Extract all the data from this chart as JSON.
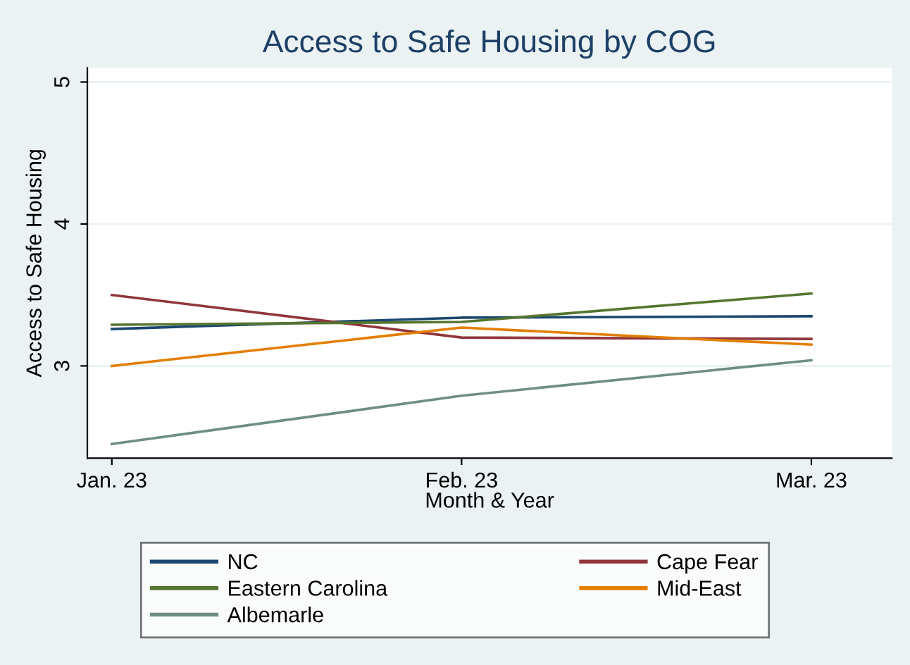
{
  "chart_data": {
    "type": "line",
    "title": "Access to Safe Housing by COG",
    "xlabel": "Month & Year",
    "ylabel": "Access to Safe Housing",
    "categories": [
      "Jan. 23",
      "Feb. 23",
      "Mar. 23"
    ],
    "series": [
      {
        "name": "NC",
        "color": "#1a476f",
        "values": [
          3.26,
          3.34,
          3.35
        ]
      },
      {
        "name": "Cape Fear",
        "color": "#90353b",
        "values": [
          3.5,
          3.2,
          3.19
        ]
      },
      {
        "name": "Eastern Carolina",
        "color": "#55752f",
        "values": [
          3.29,
          3.31,
          3.51
        ]
      },
      {
        "name": "Mid-East",
        "color": "#e37e00",
        "values": [
          3.0,
          3.27,
          3.15
        ]
      },
      {
        "name": "Albemarle",
        "color": "#6e8e84",
        "values": [
          2.45,
          2.79,
          3.04
        ]
      }
    ],
    "ylim": [
      2.35,
      5.1
    ],
    "yticks": [
      3,
      4,
      5
    ],
    "grid": "y",
    "legend": "bottom",
    "marker": "none",
    "line_style": "solid"
  }
}
